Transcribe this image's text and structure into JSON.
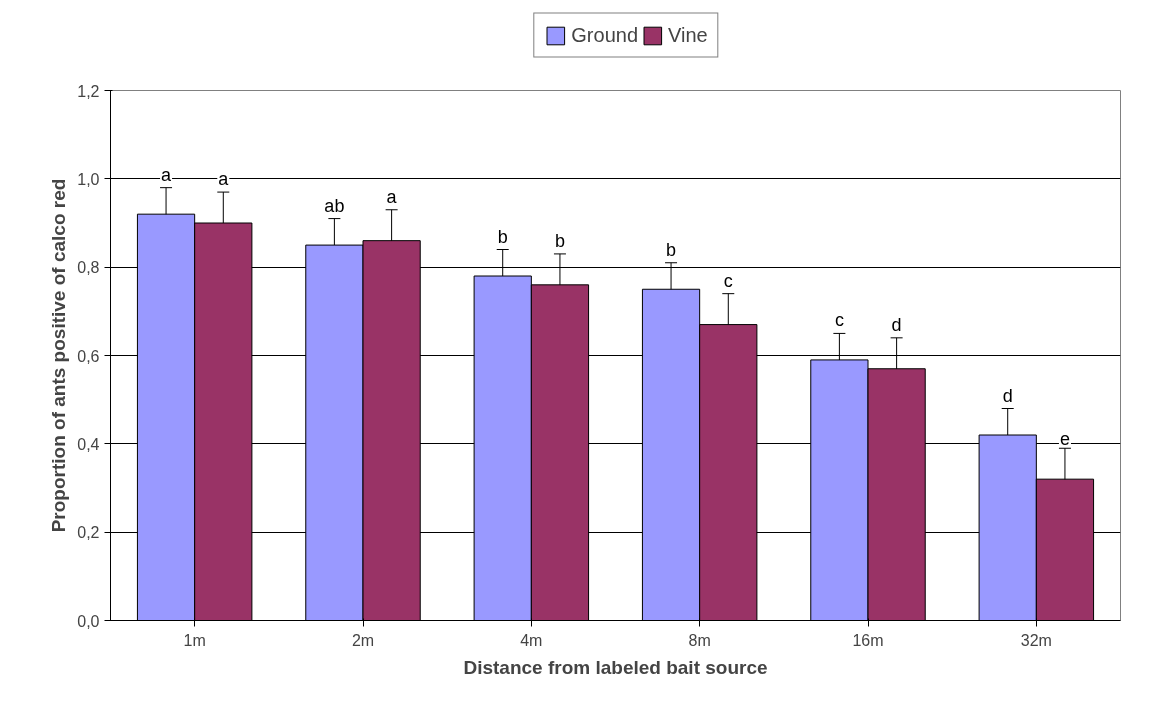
{
  "chart_data": {
    "type": "bar",
    "xlabel": "Distance from labeled bait source",
    "ylabel": "Proportion of ants positive of calco red",
    "categories": [
      "1m",
      "2m",
      "4m",
      "8m",
      "16m",
      "32m"
    ],
    "series": [
      {
        "name": "Ground",
        "color": "#9999ff",
        "values": [
          0.92,
          0.85,
          0.78,
          0.75,
          0.59,
          0.42
        ],
        "errors": [
          0.06,
          0.06,
          0.06,
          0.06,
          0.06,
          0.06
        ],
        "value_labels": [
          "a",
          "ab",
          "b",
          "b",
          "c",
          "d"
        ]
      },
      {
        "name": "Vine",
        "color": "#993366",
        "values": [
          0.9,
          0.86,
          0.76,
          0.67,
          0.57,
          0.32
        ],
        "errors": [
          0.07,
          0.07,
          0.07,
          0.07,
          0.07,
          0.07
        ],
        "value_labels": [
          "a",
          "a",
          "b",
          "c",
          "d",
          "e"
        ]
      }
    ],
    "ylim": [
      0,
      1.2
    ],
    "yticks": [
      {
        "value": 0,
        "label": "0,0"
      },
      {
        "value": 0.2,
        "label": "0,2"
      },
      {
        "value": 0.4,
        "label": "0,4"
      },
      {
        "value": 0.6,
        "label": "0,6"
      },
      {
        "value": 0.8,
        "label": "0,8"
      },
      {
        "value": 1.0,
        "label": "1,0"
      },
      {
        "value": 1.2,
        "label": "1,2"
      }
    ],
    "grid": "y",
    "legend": "top"
  }
}
